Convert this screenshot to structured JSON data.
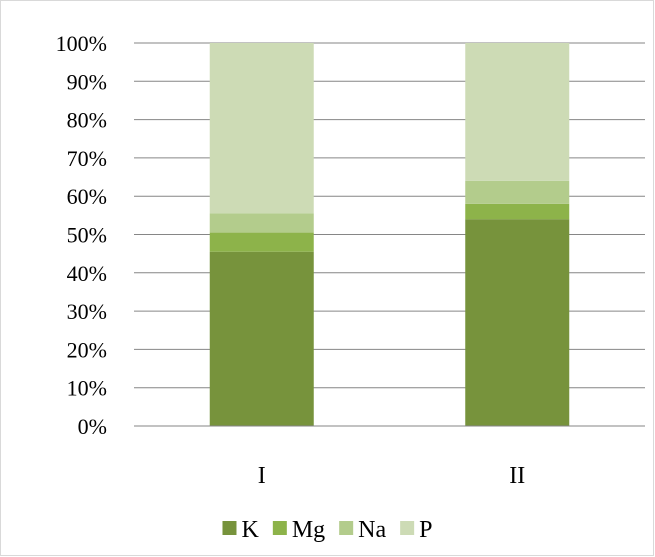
{
  "chart_data": {
    "type": "bar",
    "stacked": "percent",
    "categories": [
      "I",
      "II"
    ],
    "series": [
      {
        "name": "K",
        "values": [
          45.5,
          54
        ],
        "color": "#77933c"
      },
      {
        "name": "Mg",
        "values": [
          5,
          4
        ],
        "color": "#8db34a"
      },
      {
        "name": "Na",
        "values": [
          5,
          6
        ],
        "color": "#b3cc8c"
      },
      {
        "name": "P",
        "values": [
          44.5,
          36
        ],
        "color": "#cddbb5"
      }
    ],
    "yticks": [
      "0%",
      "10%",
      "20%",
      "30%",
      "40%",
      "50%",
      "60%",
      "70%",
      "80%",
      "90%",
      "100%"
    ],
    "ylim": [
      0,
      100
    ],
    "grid": true,
    "legend": "bottom"
  }
}
